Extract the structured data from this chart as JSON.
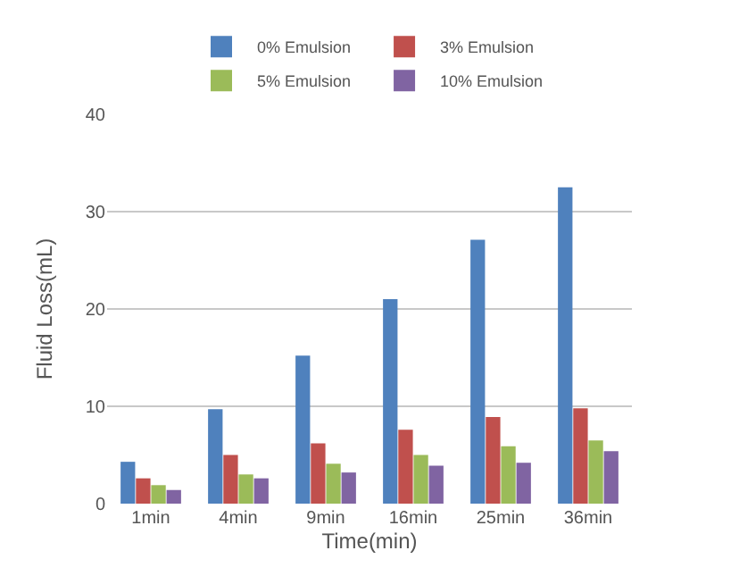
{
  "chart_data": {
    "type": "bar",
    "xlabel": "Time(min)",
    "ylabel": "Fluid Loss(mL)",
    "categories": [
      "1min",
      "4min",
      "9min",
      "16min",
      "25min",
      "36min"
    ],
    "series": [
      {
        "name": "0% Emulsion",
        "color": "#4f81bd",
        "values": [
          4.3,
          9.7,
          15.2,
          21.0,
          27.1,
          32.5
        ]
      },
      {
        "name": "3% Emulsion",
        "color": "#c0504d",
        "values": [
          2.6,
          5.0,
          6.2,
          7.6,
          8.9,
          9.8
        ]
      },
      {
        "name": "5% Emulsion",
        "color": "#9bbb59",
        "values": [
          1.9,
          3.0,
          4.1,
          5.0,
          5.9,
          6.5
        ]
      },
      {
        "name": "10% Emulsion",
        "color": "#8064a2",
        "values": [
          1.4,
          2.6,
          3.2,
          3.9,
          4.2,
          5.4
        ]
      }
    ],
    "ylim": [
      0,
      40
    ],
    "yticks": [
      0,
      10,
      20,
      30,
      40
    ],
    "grid": "y",
    "legend": "top"
  }
}
